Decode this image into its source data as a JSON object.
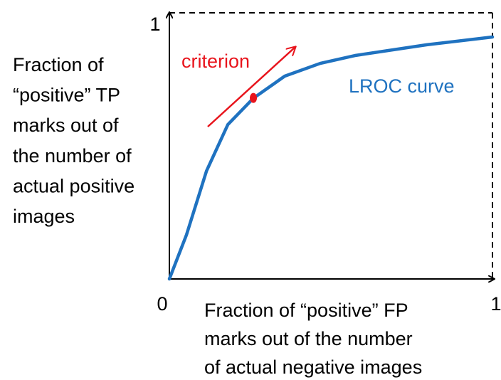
{
  "chart_data": {
    "type": "line",
    "ylabel": [
      "Fraction of",
      "“positive” TP",
      "marks out of",
      "the number of",
      "actual positive",
      "images"
    ],
    "xlabel": [
      "Fraction of “positive” FP",
      "marks out of the number",
      "of actual negative images"
    ],
    "xlim": [
      0,
      1
    ],
    "ylim": [
      0,
      1
    ],
    "xticks": [
      0,
      1
    ],
    "yticks": [
      1
    ],
    "series": [
      {
        "name": "LROC curve",
        "color": "#1f72c0",
        "x": [
          0,
          0.053,
          0.115,
          0.181,
          0.26,
          0.357,
          0.467,
          0.577,
          0.797,
          1
        ],
        "values": [
          0,
          0.166,
          0.406,
          0.58,
          0.679,
          0.762,
          0.81,
          0.84,
          0.88,
          0.909
        ]
      }
    ],
    "annotations": [
      {
        "text": "criterion",
        "x": 0.26,
        "y": 0.68,
        "color": "#e8141c"
      }
    ]
  }
}
